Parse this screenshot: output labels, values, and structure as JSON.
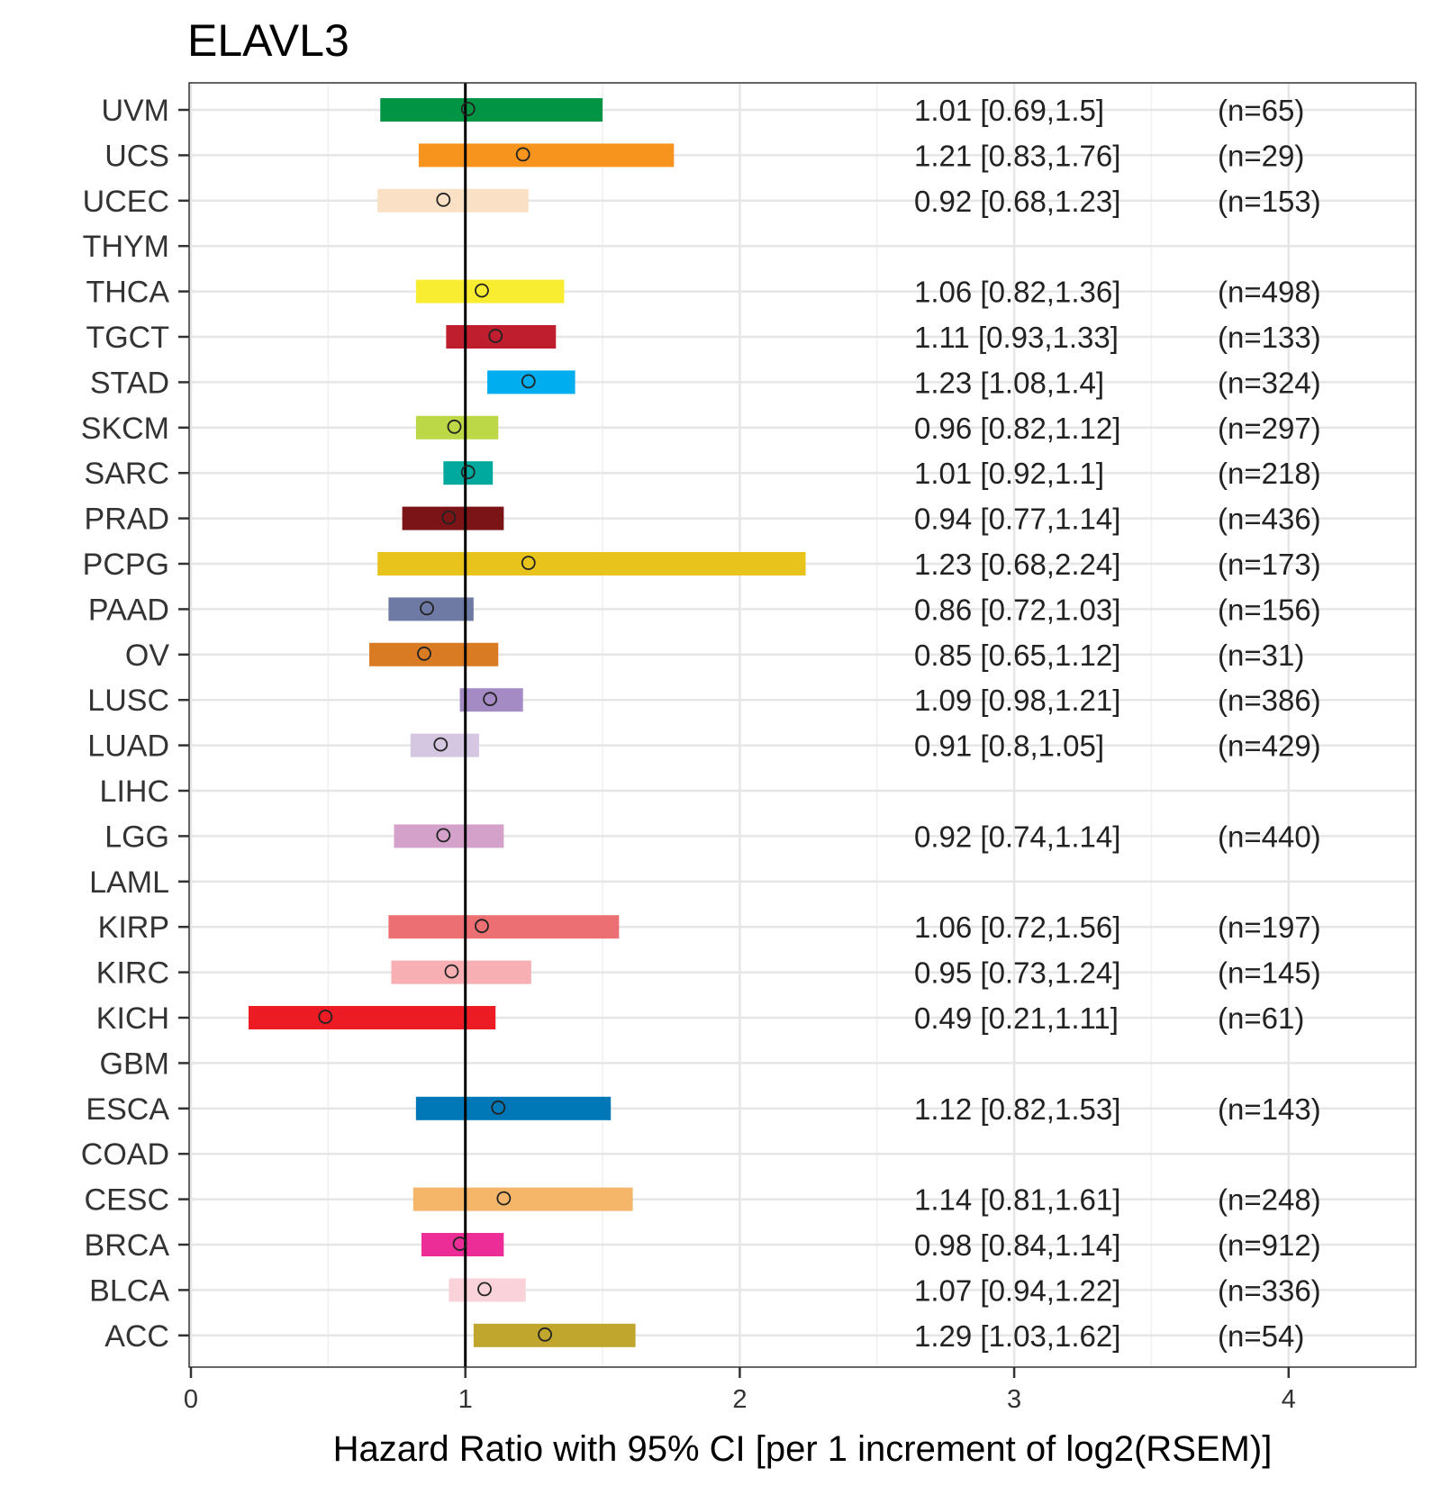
{
  "chart_data": {
    "type": "forest",
    "title": "ELAVL3",
    "xlabel": "Hazard Ratio with 95% CI [per 1 increment of log2(RSEM)]",
    "ylabel": "",
    "xlim": [
      0,
      4.5
    ],
    "xticks": [
      "0",
      "1",
      "2",
      "3",
      "4"
    ],
    "reference_line": 1,
    "grid": true,
    "rows": [
      {
        "label": "UVM",
        "hr": 1.01,
        "lo": 0.69,
        "hi": 1.5,
        "text": "1.01 [0.69,1.5]",
        "n": "(n=65)",
        "color": "#009444"
      },
      {
        "label": "UCS",
        "hr": 1.21,
        "lo": 0.83,
        "hi": 1.76,
        "text": "1.21 [0.83,1.76]",
        "n": "(n=29)",
        "color": "#F7941D"
      },
      {
        "label": "UCEC",
        "hr": 0.92,
        "lo": 0.68,
        "hi": 1.23,
        "text": "0.92 [0.68,1.23]",
        "n": "(n=153)",
        "color": "#FAE0C4"
      },
      {
        "label": "THYM"
      },
      {
        "label": "THCA",
        "hr": 1.06,
        "lo": 0.82,
        "hi": 1.36,
        "text": "1.06 [0.82,1.36]",
        "n": "(n=498)",
        "color": "#F9ED32"
      },
      {
        "label": "TGCT",
        "hr": 1.11,
        "lo": 0.93,
        "hi": 1.33,
        "text": "1.11 [0.93,1.33]",
        "n": "(n=133)",
        "color": "#BE1E2D"
      },
      {
        "label": "STAD",
        "hr": 1.23,
        "lo": 1.08,
        "hi": 1.4,
        "text": "1.23 [1.08,1.4]",
        "n": "(n=324)",
        "color": "#00AEEF"
      },
      {
        "label": "SKCM",
        "hr": 0.96,
        "lo": 0.82,
        "hi": 1.12,
        "text": "0.96 [0.82,1.12]",
        "n": "(n=297)",
        "color": "#BDD847"
      },
      {
        "label": "SARC",
        "hr": 1.01,
        "lo": 0.92,
        "hi": 1.1,
        "text": "1.01 [0.92,1.1]",
        "n": "(n=218)",
        "color": "#00A99D"
      },
      {
        "label": "PRAD",
        "hr": 0.94,
        "lo": 0.77,
        "hi": 1.14,
        "text": "0.94 [0.77,1.14]",
        "n": "(n=436)",
        "color": "#7B1416"
      },
      {
        "label": "PCPG",
        "hr": 1.23,
        "lo": 0.68,
        "hi": 2.24,
        "text": "1.23 [0.68,2.24]",
        "n": "(n=173)",
        "color": "#E8C31B"
      },
      {
        "label": "PAAD",
        "hr": 0.86,
        "lo": 0.72,
        "hi": 1.03,
        "text": "0.86 [0.72,1.03]",
        "n": "(n=156)",
        "color": "#6E7AA3"
      },
      {
        "label": "OV",
        "hr": 0.85,
        "lo": 0.65,
        "hi": 1.12,
        "text": "0.85 [0.65,1.12]",
        "n": "(n=31)",
        "color": "#D97B22"
      },
      {
        "label": "LUSC",
        "hr": 1.09,
        "lo": 0.98,
        "hi": 1.21,
        "text": "1.09 [0.98,1.21]",
        "n": "(n=386)",
        "color": "#A58BC4"
      },
      {
        "label": "LUAD",
        "hr": 0.91,
        "lo": 0.8,
        "hi": 1.05,
        "text": "0.91 [0.8,1.05]",
        "n": "(n=429)",
        "color": "#D5C6E2"
      },
      {
        "label": "LIHC"
      },
      {
        "label": "LGG",
        "hr": 0.92,
        "lo": 0.74,
        "hi": 1.14,
        "text": "0.92 [0.74,1.14]",
        "n": "(n=440)",
        "color": "#D4A1CB"
      },
      {
        "label": "LAML"
      },
      {
        "label": "KIRP",
        "hr": 1.06,
        "lo": 0.72,
        "hi": 1.56,
        "text": "1.06 [0.72,1.56]",
        "n": "(n=197)",
        "color": "#EC6F73"
      },
      {
        "label": "KIRC",
        "hr": 0.95,
        "lo": 0.73,
        "hi": 1.24,
        "text": "0.95 [0.73,1.24]",
        "n": "(n=145)",
        "color": "#F7AFB3"
      },
      {
        "label": "KICH",
        "hr": 0.49,
        "lo": 0.21,
        "hi": 1.11,
        "text": "0.49 [0.21,1.11]",
        "n": "(n=61)",
        "color": "#ED1C24"
      },
      {
        "label": "GBM"
      },
      {
        "label": "ESCA",
        "hr": 1.12,
        "lo": 0.82,
        "hi": 1.53,
        "text": "1.12 [0.82,1.53]",
        "n": "(n=143)",
        "color": "#0077B6"
      },
      {
        "label": "COAD"
      },
      {
        "label": "CESC",
        "hr": 1.14,
        "lo": 0.81,
        "hi": 1.61,
        "text": "1.14 [0.81,1.61]",
        "n": "(n=248)",
        "color": "#F5B66A"
      },
      {
        "label": "BRCA",
        "hr": 0.98,
        "lo": 0.84,
        "hi": 1.14,
        "text": "0.98 [0.84,1.14]",
        "n": "(n=912)",
        "color": "#EC2D98"
      },
      {
        "label": "BLCA",
        "hr": 1.07,
        "lo": 0.94,
        "hi": 1.22,
        "text": "1.07 [0.94,1.22]",
        "n": "(n=336)",
        "color": "#F9D2DA"
      },
      {
        "label": "ACC",
        "hr": 1.29,
        "lo": 1.03,
        "hi": 1.62,
        "text": "1.29 [1.03,1.62]",
        "n": "(n=54)",
        "color": "#C1A62E"
      }
    ]
  }
}
